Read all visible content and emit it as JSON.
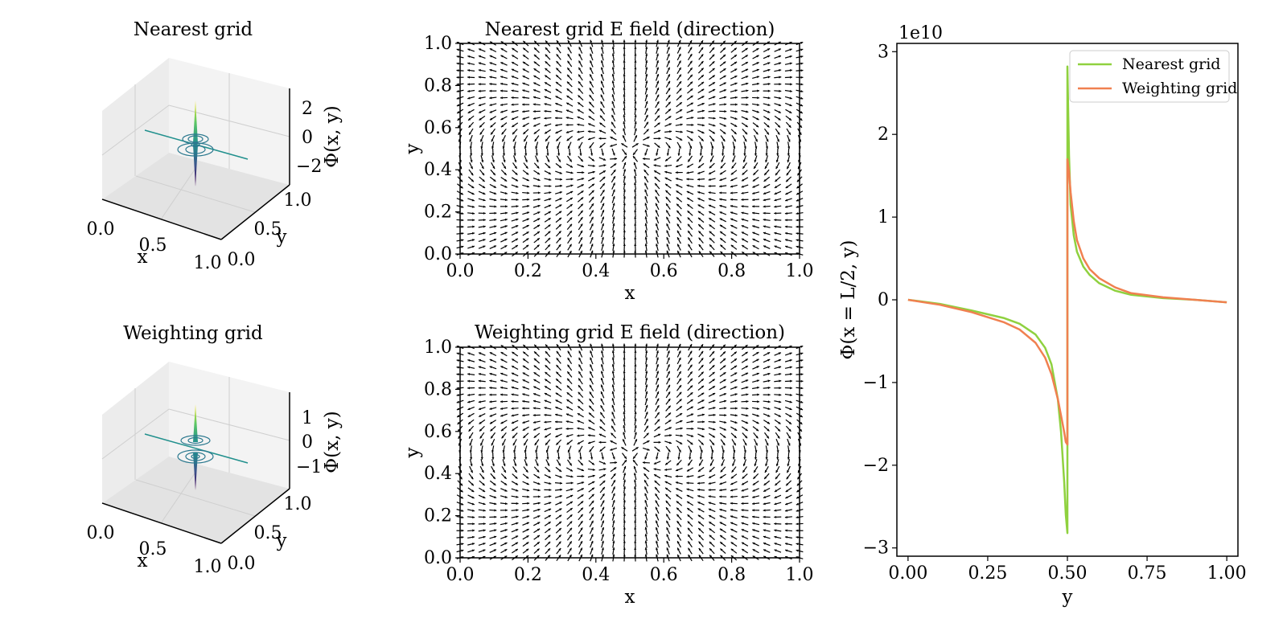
{
  "chart_data": [
    {
      "type": "surface3d",
      "title": "Nearest grid",
      "xlabel": "x",
      "ylabel": "y",
      "zlabel": "Φ(x, y)",
      "x_ticks": [
        "0.0",
        "0.5",
        "1.0"
      ],
      "y_ticks": [
        "0.0",
        "0.5",
        "1.0"
      ],
      "z_ticks": [
        "2",
        "0",
        "−2"
      ],
      "colormap": "viridis",
      "grid": true
    },
    {
      "type": "quiver",
      "title": "Nearest grid E field (direction)",
      "xlabel": "x",
      "ylabel": "y",
      "xlim": [
        0,
        1
      ],
      "ylim": [
        0,
        1
      ],
      "x_ticks": [
        "0.0",
        "0.2",
        "0.4",
        "0.6",
        "0.8",
        "1.0"
      ],
      "y_ticks": [
        "0.0",
        "0.2",
        "0.4",
        "0.6",
        "0.8",
        "1.0"
      ],
      "grid_n": 32,
      "charges": [
        {
          "x": 0.5,
          "y": 0.5,
          "q": 1
        },
        {
          "x": 0.5,
          "y": 0.48,
          "q": -1
        }
      ]
    },
    {
      "type": "surface3d",
      "title": "Weighting grid",
      "xlabel": "x",
      "ylabel": "y",
      "zlabel": "Φ(x, y)",
      "x_ticks": [
        "0.0",
        "0.5",
        "1.0"
      ],
      "y_ticks": [
        "0.0",
        "0.5",
        "1.0"
      ],
      "z_ticks": [
        "1",
        "0",
        "−1"
      ],
      "colormap": "viridis",
      "grid": true
    },
    {
      "type": "quiver",
      "title": "Weighting grid E field (direction)",
      "xlabel": "x",
      "ylabel": "y",
      "xlim": [
        0,
        1
      ],
      "ylim": [
        0,
        1
      ],
      "x_ticks": [
        "0.0",
        "0.2",
        "0.4",
        "0.6",
        "0.8",
        "1.0"
      ],
      "y_ticks": [
        "0.0",
        "0.2",
        "0.4",
        "0.6",
        "0.8",
        "1.0"
      ],
      "grid_n": 32,
      "charges": [
        {
          "x": 0.5,
          "y": 0.5,
          "q": 1
        },
        {
          "x": 0.5,
          "y": 0.48,
          "q": -1
        }
      ]
    },
    {
      "type": "line",
      "title": "",
      "xlabel": "y",
      "ylabel": "Φ(x = L/2, y)",
      "offset_text": "1e10",
      "xlim": [
        -0.035,
        1.035
      ],
      "ylim": [
        -3.1,
        3.1
      ],
      "x_ticks": [
        "0.00",
        "0.25",
        "0.50",
        "0.75",
        "1.00"
      ],
      "x_tick_values": [
        0,
        0.25,
        0.5,
        0.75,
        1.0
      ],
      "y_ticks": [
        "−3",
        "−2",
        "−1",
        "0",
        "1",
        "2",
        "3"
      ],
      "y_tick_values": [
        -3,
        -2,
        -1,
        0,
        1,
        2,
        3
      ],
      "legend": "top-right",
      "series": [
        {
          "name": "Nearest grid",
          "color": "#8fd13f",
          "x": [
            0.0,
            0.1,
            0.2,
            0.3,
            0.35,
            0.4,
            0.43,
            0.45,
            0.47,
            0.48,
            0.49,
            0.495,
            0.5,
            0.5,
            0.505,
            0.51,
            0.52,
            0.53,
            0.55,
            0.57,
            0.6,
            0.65,
            0.7,
            0.8,
            0.9,
            1.0
          ],
          "y": [
            0.0,
            -0.05,
            -0.13,
            -0.22,
            -0.29,
            -0.42,
            -0.58,
            -0.78,
            -1.2,
            -1.6,
            -2.2,
            -2.6,
            -2.82,
            2.82,
            1.75,
            1.15,
            0.78,
            0.58,
            0.4,
            0.3,
            0.2,
            0.11,
            0.06,
            0.02,
            -0.0,
            -0.03
          ]
        },
        {
          "name": "Weighting grid",
          "color": "#f08050",
          "x": [
            0.0,
            0.1,
            0.2,
            0.3,
            0.35,
            0.4,
            0.43,
            0.45,
            0.47,
            0.48,
            0.49,
            0.495,
            0.5,
            0.5,
            0.505,
            0.51,
            0.52,
            0.53,
            0.55,
            0.57,
            0.6,
            0.65,
            0.7,
            0.8,
            0.9,
            1.0
          ],
          "y": [
            0.0,
            -0.06,
            -0.15,
            -0.27,
            -0.36,
            -0.52,
            -0.7,
            -0.9,
            -1.2,
            -1.4,
            -1.6,
            -1.72,
            -1.75,
            1.7,
            1.55,
            1.3,
            0.95,
            0.72,
            0.5,
            0.37,
            0.26,
            0.15,
            0.08,
            0.03,
            -0.0,
            -0.03
          ]
        }
      ]
    }
  ]
}
